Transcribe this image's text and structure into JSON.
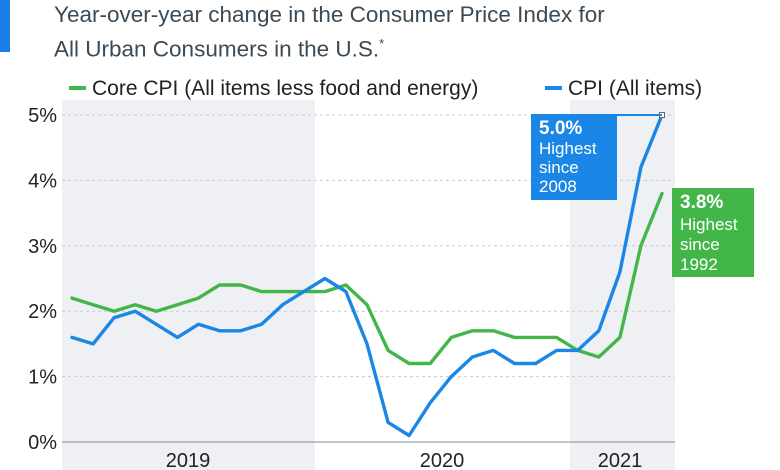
{
  "subtitle": {
    "line1": "Year-over-year change in the Consumer Price Index for",
    "line2": "All Urban Consumers in the U.S.",
    "footnote_mark": "*"
  },
  "colors": {
    "core": "#43b649",
    "cpi": "#1a87e6",
    "shade": "#eef0f3",
    "grid": "#c8ccd0"
  },
  "chart_data": {
    "type": "line",
    "ylim": [
      0,
      5
    ],
    "y_ticks": [
      "0%",
      "1%",
      "2%",
      "3%",
      "4%",
      "5%"
    ],
    "year_labels": [
      "2019",
      "2020",
      "2021"
    ],
    "shaded_years": [
      "2019",
      "2021"
    ],
    "series": [
      {
        "name": "Core CPI (All items less food and energy)",
        "color": "#43b649",
        "values": [
          2.2,
          2.1,
          2.0,
          2.1,
          2.0,
          2.1,
          2.2,
          2.4,
          2.4,
          2.3,
          2.3,
          2.3,
          2.3,
          2.4,
          2.1,
          1.4,
          1.2,
          1.2,
          1.6,
          1.7,
          1.7,
          1.6,
          1.6,
          1.6,
          1.4,
          1.3,
          1.6,
          3.0,
          3.8
        ]
      },
      {
        "name": "CPI (All items)",
        "color": "#1a87e6",
        "values": [
          1.6,
          1.5,
          1.9,
          2.0,
          1.8,
          1.6,
          1.8,
          1.7,
          1.7,
          1.8,
          2.1,
          2.3,
          2.5,
          2.3,
          1.5,
          0.3,
          0.1,
          0.6,
          1.0,
          1.3,
          1.4,
          1.2,
          1.2,
          1.4,
          1.4,
          1.7,
          2.6,
          4.2,
          5.0
        ]
      }
    ],
    "annotations": [
      {
        "series": "CPI (All items)",
        "value": "5.0%",
        "lines": [
          "Highest",
          "since",
          "2008"
        ]
      },
      {
        "series": "Core CPI (All items less food and energy)",
        "value": "3.8%",
        "lines": [
          "Highest",
          "since",
          "1992"
        ]
      }
    ]
  }
}
